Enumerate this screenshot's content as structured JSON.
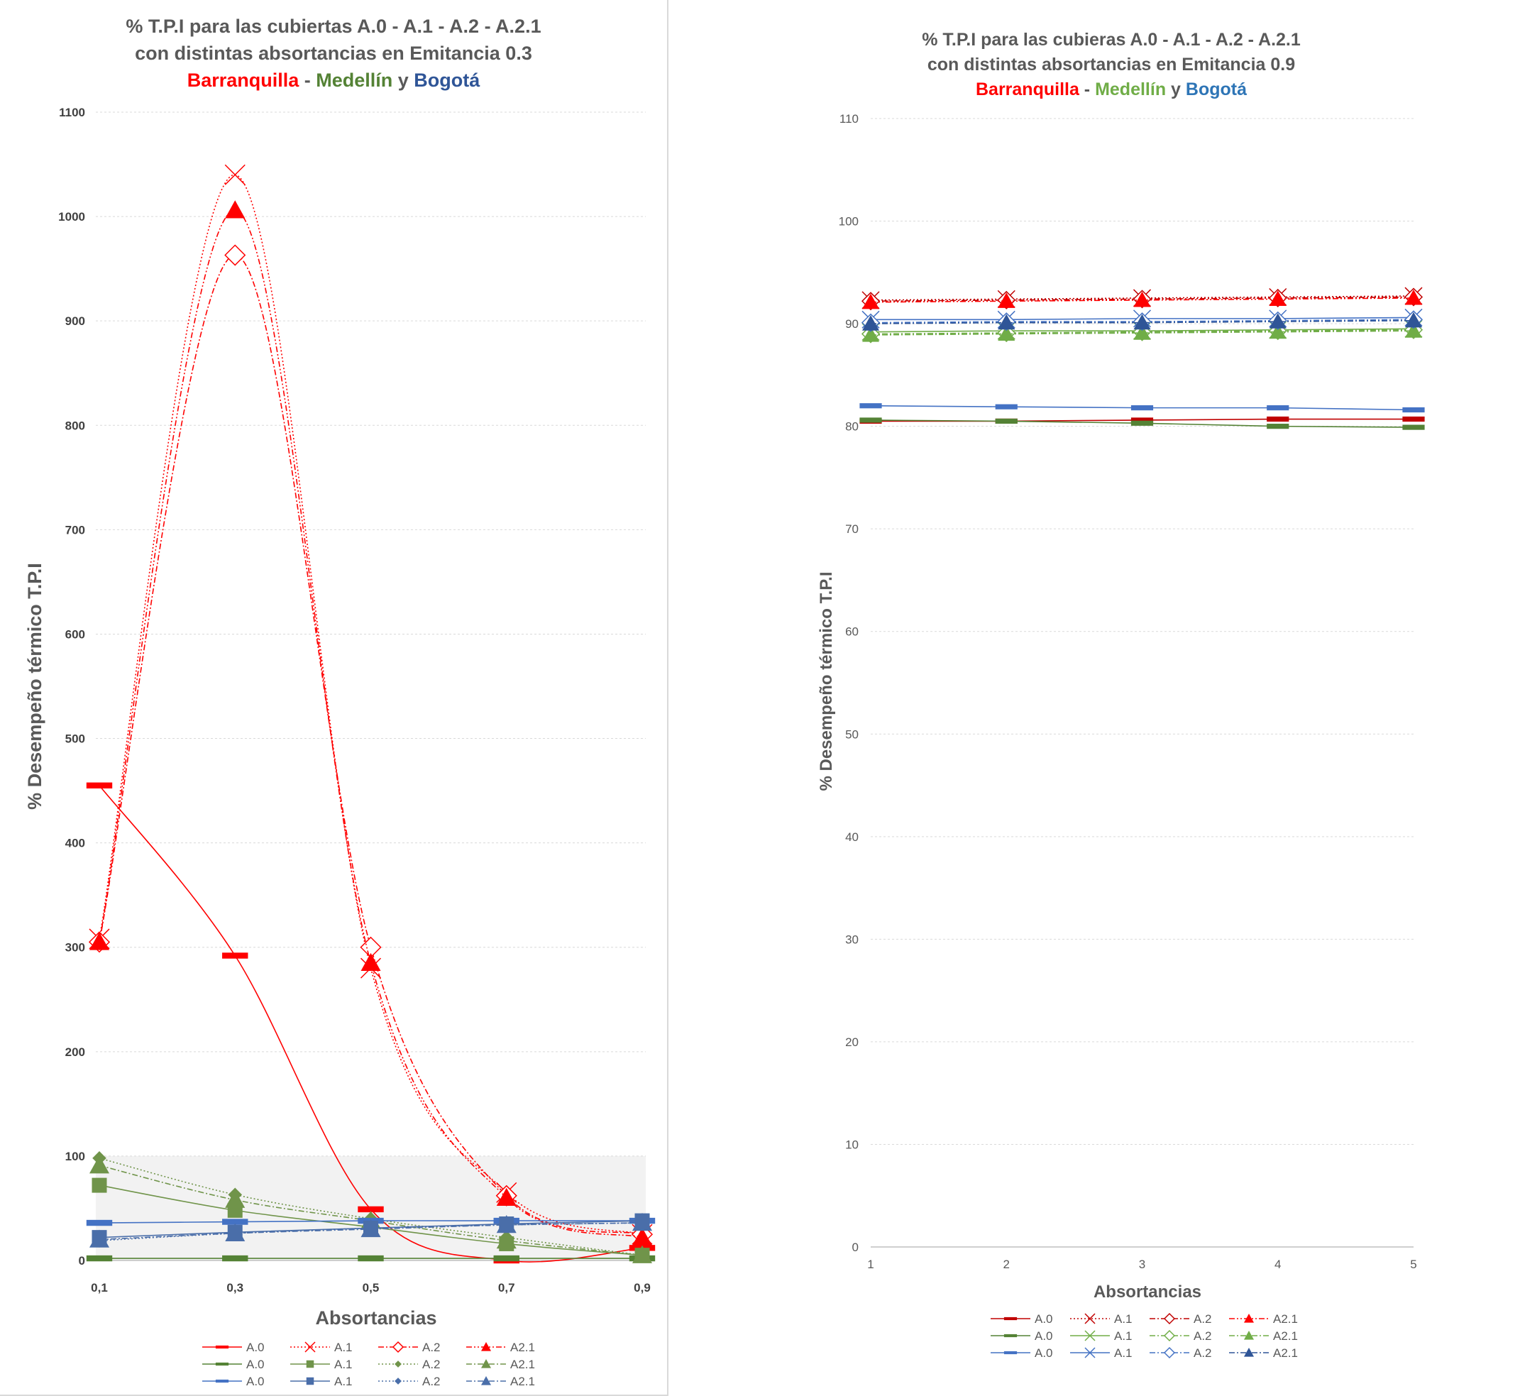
{
  "chart_data": [
    {
      "type": "line",
      "title_line1": "% T.P.I para las cubiertas A.0 - A.1 - A.2 - A.2.1",
      "title_line2": "con distintas absortancias en Emitancia 0.3",
      "title_cities": [
        {
          "text": "Barranquilla",
          "color": "#ff0000"
        },
        {
          "text": " - ",
          "color": "#595959"
        },
        {
          "text": "Medellín",
          "color": "#548235"
        },
        {
          "text": " y ",
          "color": "#595959"
        },
        {
          "text": "Bogotá",
          "color": "#2f5597"
        }
      ],
      "xlabel": "Absortancias",
      "ylabel": "% Desempeño térmico T.P.I",
      "categories": [
        "0,1",
        "0,3",
        "0,5",
        "0,7",
        "0,9"
      ],
      "ylim": [
        0,
        1100
      ],
      "yticks": [
        0,
        100,
        200,
        300,
        400,
        500,
        600,
        700,
        800,
        900,
        1000,
        1100
      ],
      "grid": true,
      "legend_position": "bottom",
      "series": [
        {
          "name": "A.0",
          "city": "Barranquilla",
          "color": "#ff0000",
          "marker": "dash",
          "dash": "solid",
          "values": [
            455,
            292,
            49,
            0,
            12
          ]
        },
        {
          "name": "A.1",
          "city": "Barranquilla",
          "color": "#ff0000",
          "marker": "x",
          "dash": "dotted",
          "values": [
            308,
            1040,
            280,
            65,
            25
          ]
        },
        {
          "name": "A.2",
          "city": "Barranquilla",
          "color": "#ff0000",
          "marker": "diamond-open",
          "dash": "dashdot",
          "values": [
            305,
            963,
            300,
            62,
            25
          ]
        },
        {
          "name": "A2.1",
          "city": "Barranquilla",
          "color": "#ff0000",
          "marker": "triangle",
          "dash": "dashdotdot",
          "values": [
            305,
            1006,
            285,
            60,
            22
          ]
        },
        {
          "name": "A.0",
          "city": "Medellín",
          "color": "#548235",
          "marker": "dash",
          "dash": "solid",
          "values": [
            2,
            2,
            2,
            2,
            2
          ]
        },
        {
          "name": "A.1",
          "city": "Medellín",
          "color": "#70944a",
          "marker": "square",
          "dash": "solid",
          "values": [
            72,
            48,
            32,
            16,
            5
          ]
        },
        {
          "name": "A.2",
          "city": "Medellín",
          "color": "#70944a",
          "marker": "diamond",
          "dash": "dotted",
          "values": [
            98,
            63,
            40,
            22,
            5
          ]
        },
        {
          "name": "A2.1",
          "city": "Medellín",
          "color": "#70944a",
          "marker": "triangle",
          "dash": "dashdot",
          "values": [
            91,
            58,
            38,
            19,
            5
          ]
        },
        {
          "name": "A.0",
          "city": "Bogotá",
          "color": "#4472c4",
          "marker": "dash",
          "dash": "solid",
          "values": [
            36,
            37,
            38,
            38,
            38
          ]
        },
        {
          "name": "A.1",
          "city": "Bogotá",
          "color": "#4a6ea9",
          "marker": "square",
          "dash": "solid",
          "values": [
            22,
            27,
            31,
            35,
            38
          ]
        },
        {
          "name": "A.2",
          "city": "Bogotá",
          "color": "#4a6ea9",
          "marker": "diamond",
          "dash": "dotted",
          "values": [
            19,
            26,
            31,
            34,
            36
          ]
        },
        {
          "name": "A2.1",
          "city": "Bogotá",
          "color": "#4a6ea9",
          "marker": "triangle",
          "dash": "dashdot",
          "values": [
            20,
            26,
            30,
            34,
            36
          ]
        }
      ]
    },
    {
      "type": "line",
      "title_line1": "% T.P.I para las cubieras A.0 - A.1 - A.2 - A.2.1",
      "title_line2": "con distintas absortancias en Emitancia 0.9",
      "title_cities": [
        {
          "text": "Barranquilla",
          "color": "#ff0000"
        },
        {
          "text": " - ",
          "color": "#595959"
        },
        {
          "text": "Medellín",
          "color": "#70ad47"
        },
        {
          "text": " y ",
          "color": "#595959"
        },
        {
          "text": "Bogotá",
          "color": "#2e75b6"
        }
      ],
      "xlabel": "Absortancias",
      "ylabel": "% Desempeño térmico T.P.I",
      "categories": [
        "1",
        "2",
        "3",
        "4",
        "5"
      ],
      "ylim": [
        0,
        110
      ],
      "yticks": [
        0,
        10,
        20,
        30,
        40,
        50,
        60,
        70,
        80,
        90,
        100,
        110
      ],
      "grid": true,
      "legend_position": "bottom",
      "series": [
        {
          "name": "A.0",
          "city": "Barranquilla",
          "color": "#c00000",
          "marker": "dash",
          "dash": "solid",
          "values": [
            80.5,
            80.5,
            80.6,
            80.7,
            80.7
          ]
        },
        {
          "name": "A.1",
          "city": "Barranquilla",
          "color": "#c00000",
          "marker": "x",
          "dash": "dotted",
          "values": [
            92.3,
            92.4,
            92.5,
            92.6,
            92.7
          ]
        },
        {
          "name": "A.2",
          "city": "Barranquilla",
          "color": "#c00000",
          "marker": "diamond-open",
          "dash": "dashdot",
          "values": [
            92.2,
            92.3,
            92.4,
            92.5,
            92.6
          ]
        },
        {
          "name": "A2.1",
          "city": "Barranquilla",
          "color": "#ff0000",
          "marker": "triangle",
          "dash": "dashdotdot",
          "values": [
            92.1,
            92.2,
            92.3,
            92.4,
            92.5
          ]
        },
        {
          "name": "A.0",
          "city": "Medellín",
          "color": "#548235",
          "marker": "dash",
          "dash": "solid",
          "values": [
            80.6,
            80.5,
            80.3,
            80.0,
            79.9
          ]
        },
        {
          "name": "A.1",
          "city": "Medellín",
          "color": "#70ad47",
          "marker": "x",
          "dash": "solid",
          "values": [
            89.2,
            89.3,
            89.3,
            89.4,
            89.5
          ]
        },
        {
          "name": "A.2",
          "city": "Medellín",
          "color": "#70ad47",
          "marker": "diamond-open",
          "dash": "dashdot",
          "values": [
            89.0,
            89.1,
            89.2,
            89.3,
            89.4
          ]
        },
        {
          "name": "A2.1",
          "city": "Medellín",
          "color": "#70ad47",
          "marker": "triangle",
          "dash": "dashdot",
          "values": [
            88.9,
            89.0,
            89.1,
            89.2,
            89.3
          ]
        },
        {
          "name": "A.0",
          "city": "Bogotá",
          "color": "#4472c4",
          "marker": "dash",
          "dash": "solid",
          "values": [
            82.0,
            81.9,
            81.8,
            81.8,
            81.6
          ]
        },
        {
          "name": "A.1",
          "city": "Bogotá",
          "color": "#4472c4",
          "marker": "x",
          "dash": "solid",
          "values": [
            90.4,
            90.4,
            90.5,
            90.5,
            90.6
          ]
        },
        {
          "name": "A.2",
          "city": "Bogotá",
          "color": "#4472c4",
          "marker": "diamond-open",
          "dash": "dashdot",
          "values": [
            90.1,
            90.2,
            90.2,
            90.3,
            90.4
          ]
        },
        {
          "name": "A2.1",
          "city": "Bogotá",
          "color": "#2f5597",
          "marker": "triangle",
          "dash": "dashdot",
          "values": [
            90.0,
            90.1,
            90.1,
            90.2,
            90.3
          ]
        }
      ]
    }
  ]
}
